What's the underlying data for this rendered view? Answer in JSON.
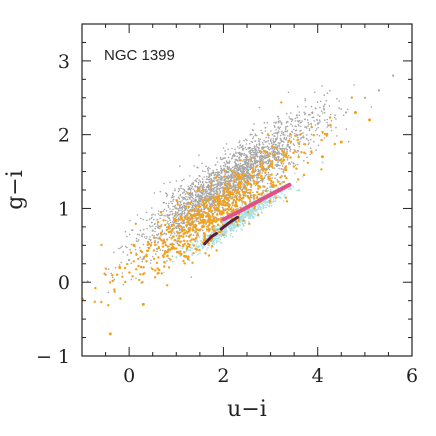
{
  "chart_data": {
    "type": "scatter",
    "title": "",
    "annotation": "NGC 1399",
    "xlabel": "u−i",
    "ylabel": "g−i",
    "xlim": [
      -1,
      6
    ],
    "ylim": [
      -1,
      3.5
    ],
    "xticks": [
      0,
      2,
      4,
      6
    ],
    "yticks": [
      -1,
      0,
      1,
      2,
      3
    ],
    "grid": false,
    "legend": "none",
    "series": [
      {
        "kind": "cloud",
        "color": "#a6a6a6",
        "n": 2600,
        "center": [
          2.1,
          1.35
        ],
        "direction": [
          1.0,
          0.45
        ],
        "spread_along": 1.0,
        "spread_across": 0.18,
        "points": [
          [
            5.6,
            2.8
          ],
          [
            5.3,
            2.6
          ],
          [
            5.0,
            2.5
          ],
          [
            4.6,
            2.3
          ],
          [
            -0.5,
            0.1
          ],
          [
            0.0,
            0.3
          ],
          [
            0.5,
            0.7
          ],
          [
            1.0,
            1.0
          ]
        ]
      },
      {
        "kind": "cloud",
        "color": "#a8dfe4",
        "n": 900,
        "center": [
          2.3,
          0.85
        ],
        "direction": [
          1.0,
          0.42
        ],
        "spread_along": 0.55,
        "spread_across": 0.06,
        "points": [
          [
            1.4,
            0.45
          ],
          [
            1.8,
            0.6
          ],
          [
            2.6,
            0.95
          ],
          [
            3.2,
            1.15
          ],
          [
            3.6,
            1.25
          ]
        ]
      },
      {
        "kind": "cloud",
        "color": "#f2a11b",
        "n": 700,
        "center": [
          1.8,
          0.95
        ],
        "direction": [
          1.0,
          0.45
        ],
        "spread_along": 1.0,
        "spread_across": 0.18,
        "points": [
          [
            1.2,
            0.35
          ],
          [
            1.25,
            0.32
          ],
          [
            1.1,
            0.38
          ],
          [
            4.1,
            1.7
          ],
          [
            4.5,
            1.9
          ],
          [
            4.8,
            2.3
          ],
          [
            5.1,
            2.2
          ],
          [
            0.1,
            0.5
          ],
          [
            -0.2,
            0.2
          ],
          [
            0.3,
            -0.3
          ],
          [
            -0.4,
            -0.7
          ]
        ]
      },
      {
        "kind": "line",
        "name": "",
        "color": "#e0518a",
        "points": [
          [
            2.0,
            0.85
          ],
          [
            2.4,
            0.98
          ],
          [
            2.8,
            1.12
          ],
          [
            3.1,
            1.22
          ],
          [
            3.4,
            1.32
          ]
        ]
      },
      {
        "kind": "line",
        "name": "",
        "color": "#5b1f3c",
        "points": [
          [
            1.6,
            0.52
          ],
          [
            1.75,
            0.62
          ],
          [
            1.85,
            0.66
          ]
        ]
      },
      {
        "kind": "line",
        "name": "",
        "color": "#5b1f3c",
        "points": [
          [
            1.95,
            0.72
          ],
          [
            2.15,
            0.82
          ],
          [
            2.3,
            0.88
          ]
        ]
      }
    ]
  }
}
